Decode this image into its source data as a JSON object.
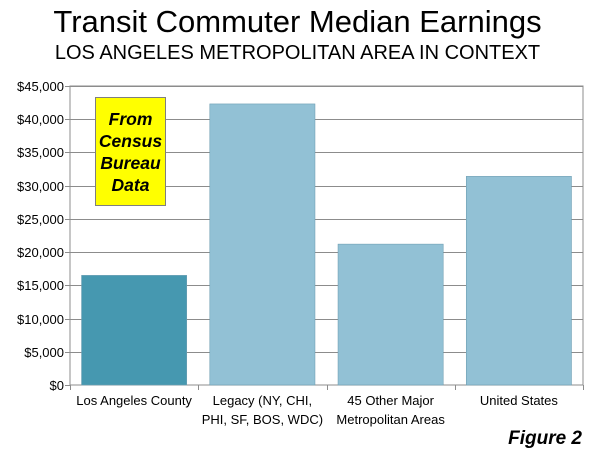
{
  "header": {
    "title": "Transit Commuter Median Earnings",
    "subtitle": "LOS ANGELES METROPOLITAN AREA IN CONTEXT"
  },
  "callout": {
    "lines": [
      "From",
      "Census",
      "Bureau",
      "Data"
    ],
    "background": "#ffff00"
  },
  "figure_label": "Figure 2",
  "chart_data": {
    "type": "bar",
    "title": "Transit Commuter Median Earnings",
    "subtitle": "LOS ANGELES METROPOLITAN AREA IN CONTEXT",
    "categories": [
      [
        "Los Angeles County"
      ],
      [
        "Legacy (NY, CHI,",
        "PHI, SF, BOS, WDC)"
      ],
      [
        "45 Other Major",
        "Metropolitan Areas"
      ],
      [
        "United States"
      ]
    ],
    "values": [
      16500,
      42300,
      21200,
      31400
    ],
    "bar_colors": [
      "#4698b0",
      "#92c1d5",
      "#92c1d5",
      "#92c1d5"
    ],
    "ylim": [
      0,
      45000
    ],
    "ytick_values": [
      0,
      5000,
      10000,
      15000,
      20000,
      25000,
      30000,
      35000,
      40000,
      45000
    ],
    "ytick_labels": [
      "$0",
      "$5,000",
      "$10,000",
      "$15,000",
      "$20,000",
      "$25,000",
      "$30,000",
      "$35,000",
      "$40,000",
      "$45,000"
    ],
    "grid": true,
    "xlabel": "",
    "ylabel": ""
  }
}
